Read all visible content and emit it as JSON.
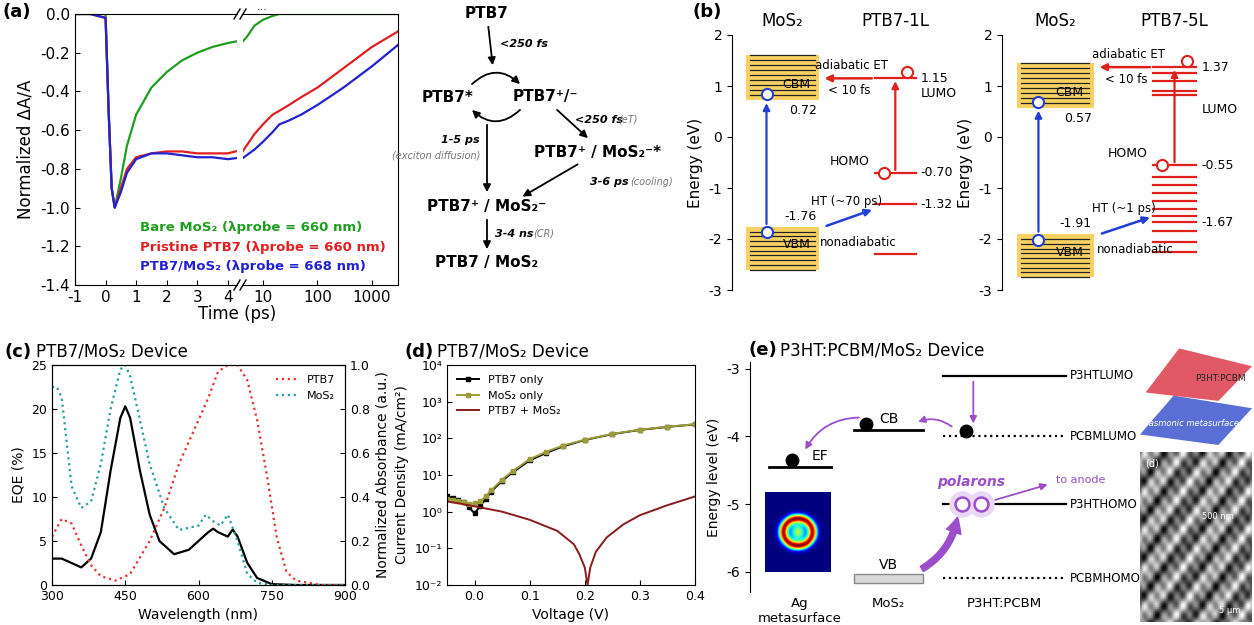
{
  "chart_data": [
    {
      "type": "line",
      "label": "(a)",
      "x_label": "Time (ps)",
      "y_label": "Normalized ΔA/A",
      "annotation": "...",
      "ylim": [
        -1.4,
        0.0
      ],
      "yticks": [
        -1.4,
        -1.2,
        -1.0,
        -0.8,
        -0.6,
        -0.4,
        -0.2,
        0.0
      ],
      "x_segments": [
        {
          "xlim": [
            -1,
            4.3
          ],
          "xticks": [
            -1,
            0,
            1,
            2,
            3,
            4
          ]
        },
        {
          "xlim": [
            4.3,
            3000
          ],
          "xticks": [
            10,
            100,
            1000
          ],
          "log": "x"
        }
      ],
      "x": [
        -1,
        -0.5,
        0,
        0.1,
        0.2,
        0.3,
        0.5,
        0.7,
        1,
        1.5,
        2,
        2.5,
        3,
        3.5,
        4,
        5,
        7,
        10,
        15,
        20,
        30,
        50,
        100,
        300,
        1000,
        3000
      ],
      "series": [
        {
          "name": "Bare MoS₂ (λprobe = 660 nm)",
          "color": "#1f9e1f",
          "values": [
            0,
            0,
            0,
            -0.5,
            -0.9,
            -1.0,
            -0.85,
            -0.68,
            -0.52,
            -0.38,
            -0.3,
            -0.24,
            -0.2,
            -0.17,
            -0.15,
            -0.12,
            -0.06,
            -0.03,
            -0.01,
            0,
            0,
            0,
            0,
            0,
            0,
            0
          ]
        },
        {
          "name": "Pristine PTB7 (λprobe = 660 nm)",
          "color": "#e02020",
          "values": [
            0,
            0,
            -0.02,
            -0.5,
            -0.9,
            -1.0,
            -0.9,
            -0.8,
            -0.74,
            -0.72,
            -0.71,
            -0.71,
            -0.72,
            -0.72,
            -0.72,
            -0.68,
            -0.62,
            -0.57,
            -0.52,
            -0.5,
            -0.47,
            -0.43,
            -0.38,
            -0.28,
            -0.17,
            -0.09
          ]
        },
        {
          "name": "PTB7/MoS₂ (λprobe = 668 nm)",
          "color": "#2222d0",
          "values": [
            0,
            0,
            -0.02,
            -0.5,
            -0.9,
            -1.0,
            -0.92,
            -0.82,
            -0.75,
            -0.72,
            -0.72,
            -0.73,
            -0.74,
            -0.74,
            -0.75,
            -0.73,
            -0.7,
            -0.66,
            -0.61,
            -0.57,
            -0.55,
            -0.52,
            -0.47,
            -0.38,
            -0.27,
            -0.16
          ]
        }
      ],
      "legend": "lower right"
    },
    {
      "type": "line",
      "label": "(c)",
      "title": "PTB7/MoS₂ Device",
      "x_label": "Wavelength (nm)",
      "y_label": "EQE (%)",
      "y2_label": "Normalized Absorbance (a.u.)",
      "xlim": [
        300,
        900
      ],
      "xticks": [
        300,
        450,
        600,
        750,
        900
      ],
      "ylim": [
        0,
        25
      ],
      "yticks": [
        0,
        5,
        10,
        15,
        20,
        25
      ],
      "y2lim": [
        0.0,
        1.0
      ],
      "y2ticks": [
        0.0,
        0.2,
        0.4,
        0.6,
        0.8,
        1.0
      ],
      "series": [
        {
          "color": "#000000",
          "line_style": "solid",
          "x": [
            300,
            320,
            340,
            360,
            380,
            400,
            420,
            440,
            450,
            460,
            480,
            500,
            520,
            550,
            580,
            600,
            620,
            630,
            640,
            660,
            670,
            680,
            700,
            720,
            750,
            800,
            850,
            900
          ],
          "values": [
            3,
            3,
            2.5,
            2,
            3,
            6,
            13,
            19,
            20.3,
            19,
            13,
            8,
            5,
            3.5,
            4,
            5,
            6,
            6.4,
            6,
            5.5,
            6.3,
            5.5,
            2.5,
            0.8,
            0.1,
            0,
            0,
            0
          ]
        },
        {
          "name": "PTB7",
          "axis": "y2",
          "color": "#e8312f",
          "line_style": "dotted",
          "x": [
            300,
            320,
            340,
            360,
            380,
            400,
            430,
            460,
            500,
            530,
            560,
            600,
            620,
            640,
            660,
            680,
            700,
            720,
            740,
            760,
            780,
            800,
            850,
            900
          ],
          "values": [
            0.22,
            0.3,
            0.28,
            0.18,
            0.09,
            0.04,
            0.02,
            0.05,
            0.2,
            0.35,
            0.55,
            0.75,
            0.85,
            0.97,
            1.0,
            1.0,
            0.93,
            0.75,
            0.5,
            0.22,
            0.06,
            0.02,
            0,
            0
          ]
        },
        {
          "name": "MoS₂",
          "axis": "y2",
          "color": "#2a9d9d",
          "line_style": "dotted",
          "x": [
            300,
            310,
            320,
            340,
            360,
            380,
            400,
            420,
            440,
            450,
            460,
            480,
            500,
            530,
            560,
            600,
            615,
            630,
            645,
            660,
            680,
            700,
            720,
            750,
            800,
            900
          ],
          "values": [
            0.9,
            0.9,
            0.85,
            0.45,
            0.35,
            0.38,
            0.55,
            0.8,
            0.98,
            1.0,
            0.95,
            0.75,
            0.55,
            0.35,
            0.25,
            0.27,
            0.32,
            0.29,
            0.27,
            0.32,
            0.2,
            0.05,
            0.01,
            0,
            0,
            0
          ]
        }
      ],
      "legend": "upper right"
    },
    {
      "type": "line",
      "label": "(d)",
      "title": "PTB7/MoS₂ Device",
      "x_label": "Voltage (V)",
      "y_label": "Current Density (mA/cm²)",
      "log": "y",
      "xlim": [
        -0.05,
        0.4
      ],
      "xticks": [
        0.0,
        0.1,
        0.2,
        0.3,
        0.4
      ],
      "ylim": [
        0.01,
        10000
      ],
      "yticks": [
        {
          "value": 0.01,
          "label": "10⁻²"
        },
        {
          "value": 0.1,
          "label": "10⁻¹"
        },
        {
          "value": 1,
          "label": "10⁰"
        },
        {
          "value": 10,
          "label": "10¹"
        },
        {
          "value": 100,
          "label": "10²"
        },
        {
          "value": 1000,
          "label": "10³"
        },
        {
          "value": 10000,
          "label": "10⁴"
        }
      ],
      "series": [
        {
          "name": "PTB7 only",
          "color": "#000000",
          "marker": "square",
          "line_style": "solid",
          "x": [
            -0.05,
            -0.04,
            -0.03,
            -0.02,
            -0.01,
            0.0,
            0.01,
            0.02,
            0.03,
            0.05,
            0.07,
            0.1,
            0.13,
            0.16,
            0.2,
            0.25,
            0.3,
            0.35,
            0.4
          ],
          "values": [
            2.6,
            2.4,
            2.1,
            1.8,
            1.3,
            0.9,
            1.4,
            2.2,
            3.5,
            7,
            12,
            25,
            40,
            60,
            90,
            130,
            170,
            205,
            240
          ]
        },
        {
          "name": "MoS₂ only",
          "color": "#9c9c3a",
          "marker": "square",
          "line_style": "solid",
          "x": [
            -0.05,
            -0.04,
            -0.03,
            -0.02,
            -0.01,
            0.0,
            0.01,
            0.02,
            0.03,
            0.05,
            0.07,
            0.1,
            0.13,
            0.16,
            0.2,
            0.25,
            0.3,
            0.35,
            0.4
          ],
          "values": [
            2.2,
            2.1,
            1.9,
            1.8,
            1.6,
            1.7,
            1.9,
            2.6,
            3.8,
            7.5,
            13,
            27,
            43,
            63,
            92,
            132,
            172,
            208,
            242
          ]
        },
        {
          "name": "PTB7 + MoS₂",
          "color": "#8b1a1a",
          "marker": "none",
          "line_style": "solid",
          "x": [
            -0.05,
            -0.02,
            0.0,
            0.05,
            0.1,
            0.15,
            0.18,
            0.19,
            0.2,
            0.205,
            0.21,
            0.22,
            0.24,
            0.27,
            0.3,
            0.35,
            0.4
          ],
          "values": [
            1.9,
            1.6,
            1.4,
            1.0,
            0.6,
            0.3,
            0.13,
            0.07,
            0.03,
            0.01,
            0.03,
            0.08,
            0.2,
            0.45,
            0.8,
            1.5,
            2.6
          ]
        }
      ],
      "legend": "upper left"
    }
  ],
  "diagrams": {
    "scheme_a": {
      "nodes": [
        "PTB7",
        "PTB7*",
        "PTB7⁺/⁻",
        "PTB7⁺ / MoS₂⁻*",
        "PTB7⁺ / MoS₂⁻",
        "PTB7 / MoS₂"
      ],
      "edges": [
        {
          "time": "<250 fs"
        },
        {
          "time": "1-5 ps",
          "note": "(exciton diffusion)"
        },
        {
          "time": "<250 fs",
          "note": "(eT)"
        },
        {
          "time": "3-6 ps",
          "note": "(cooling)"
        },
        {
          "time": "3-4 ns",
          "note": "(CR)"
        }
      ]
    },
    "energy_b": {
      "label": "(b)",
      "y_label": "Energy (eV)",
      "ylim": [
        -3,
        2
      ],
      "yticks": [
        -3,
        -2,
        -1,
        0,
        1,
        2
      ],
      "diagrams": [
        {
          "titles": [
            "MoS₂",
            "PTB7-1L"
          ],
          "cbm_label": "CBM",
          "vbm_label": "VBM",
          "cbm": 0.72,
          "vbm": -1.76,
          "cb_top": 1.6,
          "vb_bottom": -2.6,
          "levels": [
            {
              "value": 1.15,
              "label": "1.15"
            },
            {
              "value": -0.7,
              "label": "-0.70"
            },
            {
              "value": -1.32,
              "label": "-1.32"
            },
            -2.3
          ],
          "lumo_label": "LUMO",
          "homo_label": "HOMO",
          "et_label": "adiabatic ET",
          "et_time": "< 10 fs",
          "ht_label": "HT (~70 ps)",
          "ht_kind": "nonadiabatic"
        },
        {
          "titles": [
            "MoS₂",
            "PTB7-5L"
          ],
          "cbm_label": "CBM",
          "vbm_label": "VBM",
          "cbm": 0.57,
          "vbm": -1.91,
          "cb_top": 1.45,
          "vb_bottom": -2.75,
          "levels": [
            {
              "value": 1.37,
              "label": "1.37"
            },
            1.25,
            1.1,
            0.9,
            0.83,
            {
              "value": -0.55,
              "label": "-0.55"
            },
            -0.78,
            -0.95,
            -1.1,
            -1.25,
            -1.42,
            -1.55,
            {
              "value": -1.67,
              "label": "-1.67"
            },
            -1.85,
            -2.05,
            -2.25
          ],
          "lumo_label": "LUMO",
          "homo_label": "HOMO",
          "et_label": "adiabatic ET",
          "et_time": "< 10 fs",
          "ht_label": "HT (~1 ps)",
          "ht_kind": "nonadiabatic"
        }
      ]
    },
    "energy_e": {
      "label": "(e)",
      "title": "P3HT:PCBM/MoS₂ Device",
      "y_label": "Energy level (eV)",
      "ylim": [
        -6.3,
        -2.9
      ],
      "yticks": [
        -6,
        -5,
        -4,
        -3
      ],
      "columns": [
        "Ag\nmetasurface",
        "MoS₂",
        "P3HT:PCBM"
      ],
      "ag": {
        "label": "EF",
        "value": -4.45
      },
      "mos2": {
        "cb": {
          "label": "CB",
          "value": -3.9
        },
        "vb": {
          "label": "VB",
          "value": -6.1
        }
      },
      "p3ht_pcbm": [
        {
          "label": "P3HTLUMO",
          "value": -3.1,
          "line_style": "solid"
        },
        {
          "label": "PCBMLUMO",
          "value": -4.0,
          "line_style": "dotted"
        },
        {
          "label": "P3HTHOMO",
          "value": -5.0,
          "line_style": "solid"
        },
        {
          "label": "PCBMHOMO",
          "value": -6.1,
          "line_style": "dotted"
        }
      ],
      "polarons": "polarons",
      "to_anode": "to anode",
      "insets": {
        "render_label": "P3HT:PCBM",
        "render_caption": "plasmonic metasurface",
        "sem_labels": [
          "(d)",
          "500 nm",
          "5 μm"
        ]
      }
    }
  }
}
